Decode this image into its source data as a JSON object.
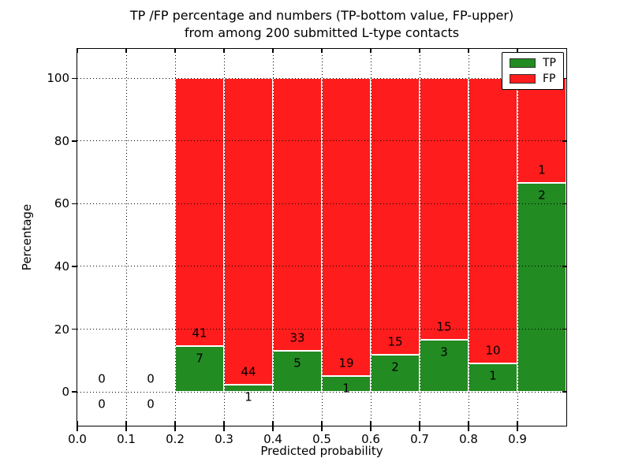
{
  "title": {
    "line1": "TP /FP percentage and numbers (TP-bottom value, FP-upper)",
    "line2": "from among 200 submitted L-type contacts"
  },
  "chart_data": {
    "type": "bar",
    "stacked": true,
    "title": "TP /FP percentage and numbers (TP-bottom value, FP-upper) from among 200 submitted L-type contacts",
    "xlabel": "Predicted probability",
    "ylabel": "Percentage",
    "xlim": [
      0.0,
      1.0
    ],
    "ylim": [
      -10.8,
      109.4
    ],
    "grid": "dotted",
    "bar_stack_total_percent": 100,
    "annotation_note": "FP count printed above the TP/FP boundary, TP count printed below it",
    "xtick_values": [
      0.0,
      0.1,
      0.2,
      0.3,
      0.4,
      0.5,
      0.6,
      0.7,
      0.8,
      0.9
    ],
    "xtick_labels": [
      "0.0",
      "0.1",
      "0.2",
      "0.3",
      "0.4",
      "0.5",
      "0.6",
      "0.7",
      "0.8",
      "0.9"
    ],
    "ytick_values": [
      0,
      20,
      40,
      60,
      80,
      100
    ],
    "ytick_labels": [
      "0",
      "20",
      "40",
      "60",
      "80",
      "100"
    ],
    "colors": {
      "tp": "#228b22",
      "fp": "#ff1c1c"
    },
    "legend": {
      "position": "upper right",
      "entries": [
        {
          "name": "TP",
          "color": "#228b22"
        },
        {
          "name": "FP",
          "color": "#ff1c1c"
        }
      ]
    },
    "bins": [
      {
        "x_start": 0.0,
        "x_end": 0.1,
        "tp": 0,
        "fp": 0
      },
      {
        "x_start": 0.1,
        "x_end": 0.2,
        "tp": 0,
        "fp": 0
      },
      {
        "x_start": 0.2,
        "x_end": 0.3,
        "tp": 7,
        "fp": 41
      },
      {
        "x_start": 0.3,
        "x_end": 0.4,
        "tp": 1,
        "fp": 44
      },
      {
        "x_start": 0.4,
        "x_end": 0.5,
        "tp": 5,
        "fp": 33
      },
      {
        "x_start": 0.5,
        "x_end": 0.6,
        "tp": 1,
        "fp": 19
      },
      {
        "x_start": 0.6,
        "x_end": 0.7,
        "tp": 2,
        "fp": 15
      },
      {
        "x_start": 0.7,
        "x_end": 0.8,
        "tp": 3,
        "fp": 15
      },
      {
        "x_start": 0.8,
        "x_end": 0.9,
        "tp": 1,
        "fp": 10
      },
      {
        "x_start": 0.9,
        "x_end": 1.0,
        "tp": 2,
        "fp": 1
      }
    ]
  }
}
